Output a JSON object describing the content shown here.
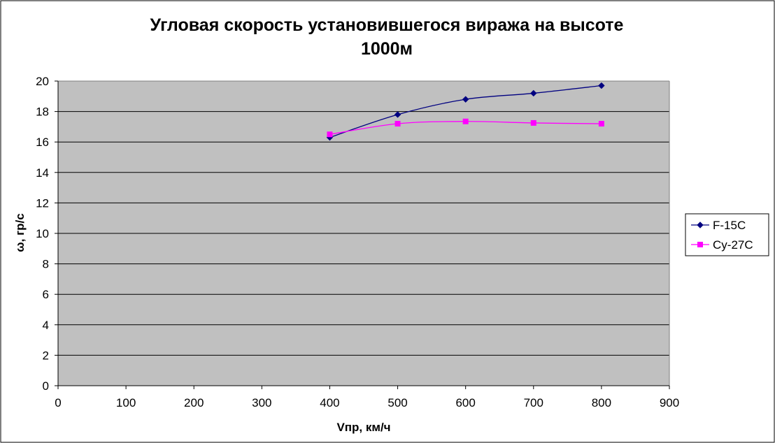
{
  "chart_data": {
    "type": "line",
    "title": [
      "Угловая скорость установившегося виража на высоте",
      "1000м"
    ],
    "xlabel": "Vпр, км/ч",
    "ylabel": "ω, гр/с",
    "xlim": [
      0,
      900
    ],
    "ylim": [
      0,
      20
    ],
    "x_ticks": [
      0,
      100,
      200,
      300,
      400,
      500,
      600,
      700,
      800,
      900
    ],
    "y_ticks": [
      0,
      2,
      4,
      6,
      8,
      10,
      12,
      14,
      16,
      18,
      20
    ],
    "grid": "horizontal",
    "plot_background": "#c0c0c0",
    "legend_position": "right",
    "series": [
      {
        "name": "F-15C",
        "color": "#000080",
        "marker": "diamond",
        "smooth": true,
        "x": [
          400,
          500,
          600,
          700,
          800
        ],
        "y": [
          16.3,
          17.8,
          18.8,
          19.2,
          19.7
        ]
      },
      {
        "name": "Су-27С",
        "color": "#ff00ff",
        "marker": "square",
        "smooth": true,
        "x": [
          400,
          500,
          600,
          700,
          800
        ],
        "y": [
          16.5,
          17.2,
          17.35,
          17.25,
          17.2
        ]
      }
    ]
  }
}
